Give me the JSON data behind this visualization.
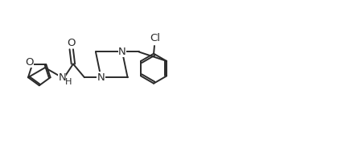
{
  "bg_color": "#ffffff",
  "line_color": "#2a2a2a",
  "line_width": 1.4,
  "font_size": 9.5,
  "figsize": [
    4.5,
    1.79
  ],
  "dpi": 100,
  "xlim": [
    0,
    10
  ],
  "ylim": [
    0,
    4
  ]
}
